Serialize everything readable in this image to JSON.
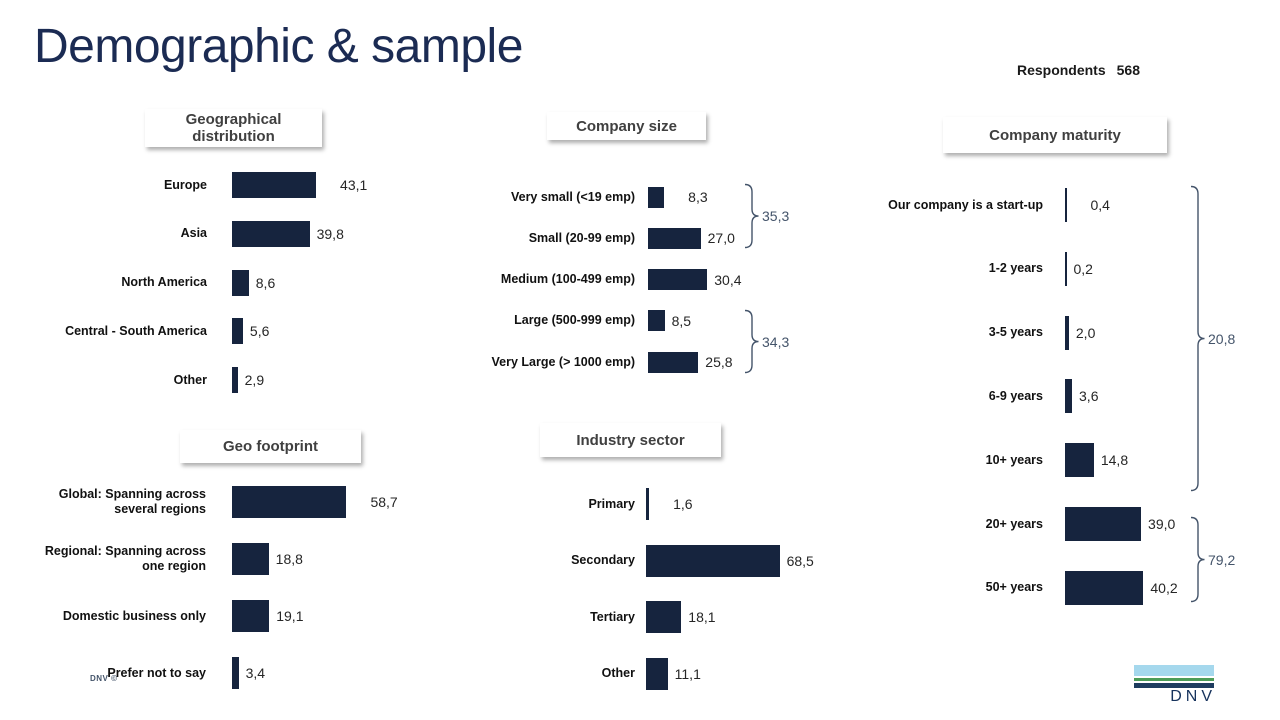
{
  "slide": {
    "title": "Demographic & sample",
    "respondents_label": "Respondents",
    "respondents_value": "568",
    "footer_note": "DNV ©",
    "logo_text": "DNV"
  },
  "colors": {
    "bar": "#16243E",
    "title_text": "#1B2B53",
    "bracket": "#44546A",
    "header_text": "#404040",
    "logo_lightblue": "#A5D8ED",
    "logo_green": "#4C9C57",
    "logo_navy": "#1E3C5F"
  },
  "chart_data": [
    {
      "type": "bar",
      "orientation": "horizontal",
      "title": "Geographical distribution",
      "categories": [
        "Europe",
        "Asia",
        "North America",
        "Central - South America",
        "Other"
      ],
      "values": [
        43.1,
        39.8,
        8.6,
        5.6,
        2.9
      ],
      "value_labels": [
        "43,1",
        "39,8",
        "8,6",
        "5,6",
        "2,9"
      ],
      "xlim": [
        0,
        100
      ],
      "grid": false,
      "brackets": []
    },
    {
      "type": "bar",
      "orientation": "horizontal",
      "title": "Company size",
      "categories": [
        "Very small (<19 emp)",
        "Small (20-99 emp)",
        "Medium (100-499 emp)",
        "Large (500-999 emp)",
        "Very Large (> 1000 emp)"
      ],
      "values": [
        8.3,
        27.0,
        30.4,
        8.5,
        25.8
      ],
      "value_labels": [
        "8,3",
        "27,0",
        "30,4",
        "8,5",
        "25,8"
      ],
      "xlim": [
        0,
        100
      ],
      "grid": false,
      "brackets": [
        {
          "from": 0,
          "to": 1,
          "label": "35,3",
          "value": 35.3
        },
        {
          "from": 3,
          "to": 4,
          "label": "34,3",
          "value": 34.3
        }
      ]
    },
    {
      "type": "bar",
      "orientation": "horizontal",
      "title": "Company maturity",
      "categories": [
        "Our company is a start-up",
        "1-2 years",
        "3-5 years",
        "6-9 years",
        "10+ years",
        "20+ years",
        "50+ years"
      ],
      "values": [
        0.4,
        0.2,
        2.0,
        3.6,
        14.8,
        39.0,
        40.2
      ],
      "value_labels": [
        "0,4",
        "0,2",
        "2,0",
        "3,6",
        "14,8",
        "39,0",
        "40,2"
      ],
      "xlim": [
        0,
        100
      ],
      "grid": false,
      "brackets": [
        {
          "from": 0,
          "to": 4,
          "label": "20,8",
          "value": 20.8
        },
        {
          "from": 5,
          "to": 6,
          "label": "79,2",
          "value": 79.2
        }
      ]
    },
    {
      "type": "bar",
      "orientation": "horizontal",
      "title": "Geo footprint",
      "categories": [
        "Global: Spanning across several regions",
        "Regional: Spanning across one region",
        "Domestic business only",
        "Prefer not to say"
      ],
      "values": [
        58.7,
        18.8,
        19.1,
        3.4
      ],
      "value_labels": [
        "58,7",
        "18,8",
        "19,1",
        "3,4"
      ],
      "xlim": [
        0,
        100
      ],
      "grid": false,
      "brackets": []
    },
    {
      "type": "bar",
      "orientation": "horizontal",
      "title": "Industry sector",
      "categories": [
        "Primary",
        "Secondary",
        "Tertiary",
        "Other"
      ],
      "values": [
        1.6,
        68.5,
        18.1,
        11.1
      ],
      "value_labels": [
        "1,6",
        "68,5",
        "18,1",
        "11,1"
      ],
      "xlim": [
        0,
        100
      ],
      "grid": false,
      "brackets": []
    }
  ]
}
